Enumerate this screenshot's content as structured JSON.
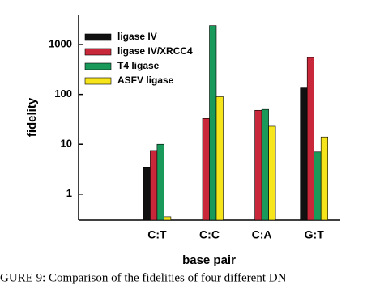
{
  "chart_data": {
    "type": "bar",
    "x_label": "base pair",
    "y_label": "fidelity",
    "caption": "GURE 9:  Comparison of the fidelities of four different DN",
    "categories": [
      null,
      "C:T",
      "C:C",
      "C:A",
      "G:T"
    ],
    "series": [
      {
        "name": "ligase IV",
        "color": "#111111",
        "values": [
          null,
          3.5,
          null,
          null,
          135
        ]
      },
      {
        "name": "ligase IV/XRCC4",
        "color": "#c8283a",
        "values": [
          null,
          7.5,
          33,
          48,
          550
        ]
      },
      {
        "name": "T4 ligase",
        "color": "#1a9a5a",
        "values": [
          null,
          10,
          2400,
          50,
          7
        ]
      },
      {
        "name": "ASFV ligase",
        "color": "#f5e51a",
        "values": [
          null,
          0.35,
          90,
          23,
          14
        ]
      }
    ],
    "log_scale": true,
    "ylim": [
      0.3,
      4000
    ],
    "yticks": [
      1,
      10,
      100,
      1000
    ],
    "legend": "upper left"
  }
}
